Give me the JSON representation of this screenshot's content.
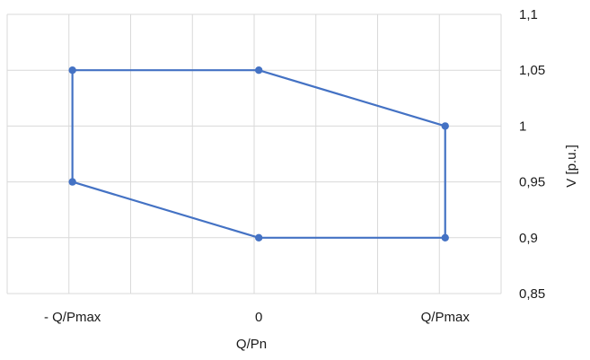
{
  "chart_data": {
    "type": "scatter",
    "xlabel": "Q/Pn",
    "ylabel": "V [p.u.]",
    "x_tick_labels": [
      "- Q/Pmax",
      "0",
      "Q/Pmax"
    ],
    "x_tick_values": [
      -1,
      0,
      1
    ],
    "xlim": [
      -1.35,
      1.3
    ],
    "ylim": [
      0.85,
      1.1
    ],
    "y_ticks": [
      0.85,
      0.9,
      0.95,
      1.0,
      1.05,
      1.1
    ],
    "y_tick_labels": [
      "0,85",
      "0,9",
      "0,95",
      "1",
      "1,05",
      "1,1"
    ],
    "grid": true,
    "series": [
      {
        "color": "#4472c4",
        "x": [
          -1,
          0,
          1,
          1,
          0,
          -1,
          -1
        ],
        "y": [
          1.05,
          1.05,
          1.0,
          0.9,
          0.9,
          0.95,
          1.05
        ]
      }
    ]
  }
}
